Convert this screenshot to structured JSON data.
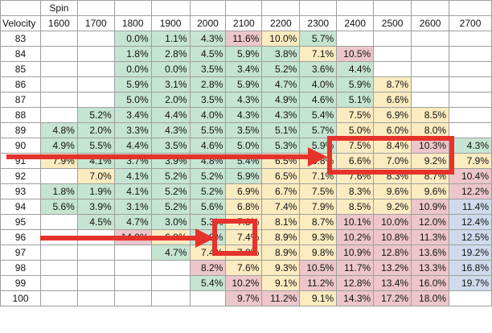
{
  "table": {
    "spin_label": "Spin",
    "velocity_label": "Velocity",
    "spin_values": [
      "1600",
      "1700",
      "1800",
      "1900",
      "2000",
      "2100",
      "2200",
      "2300",
      "2400",
      "2500",
      "2600",
      "2700"
    ],
    "colors": {
      "green": "#c6e4d2",
      "yellow": "#fbebc0",
      "pink": "#ecc6cb",
      "blue": "#cfdbec",
      "arrow": "#e5322b"
    },
    "rows": [
      {
        "velocity": "83",
        "cells": [
          null,
          null,
          [
            "0.0%",
            "g"
          ],
          [
            "1.1%",
            "g"
          ],
          [
            "4.3%",
            "g"
          ],
          [
            "11.6%",
            "p"
          ],
          [
            "10.0%",
            "y"
          ],
          [
            "5.7%",
            "g"
          ],
          null,
          null,
          null,
          null
        ]
      },
      {
        "velocity": "84",
        "cells": [
          null,
          null,
          [
            "1.8%",
            "g"
          ],
          [
            "2.8%",
            "g"
          ],
          [
            "4.5%",
            "g"
          ],
          [
            "5.9%",
            "g"
          ],
          [
            "3.8%",
            "g"
          ],
          [
            "7.1%",
            "y"
          ],
          [
            "10.5%",
            "p"
          ],
          null,
          null,
          null
        ]
      },
      {
        "velocity": "85",
        "cells": [
          null,
          null,
          [
            "0.0%",
            "g"
          ],
          [
            "0.0%",
            "g"
          ],
          [
            "3.5%",
            "g"
          ],
          [
            "3.4%",
            "g"
          ],
          [
            "5.2%",
            "g"
          ],
          [
            "3.6%",
            "g"
          ],
          [
            "4.4%",
            "g"
          ],
          null,
          null,
          null
        ]
      },
      {
        "velocity": "86",
        "cells": [
          null,
          null,
          [
            "5.9%",
            "g"
          ],
          [
            "3.1%",
            "g"
          ],
          [
            "2.8%",
            "g"
          ],
          [
            "5.9%",
            "g"
          ],
          [
            "4.7%",
            "g"
          ],
          [
            "4.0%",
            "g"
          ],
          [
            "5.9%",
            "g"
          ],
          [
            "8.7%",
            "y"
          ],
          null,
          null
        ]
      },
      {
        "velocity": "87",
        "cells": [
          null,
          null,
          [
            "5.0%",
            "g"
          ],
          [
            "2.0%",
            "g"
          ],
          [
            "3.5%",
            "g"
          ],
          [
            "4.3%",
            "g"
          ],
          [
            "4.9%",
            "g"
          ],
          [
            "4.6%",
            "g"
          ],
          [
            "5.1%",
            "g"
          ],
          [
            "6.6%",
            "y"
          ],
          null,
          null
        ]
      },
      {
        "velocity": "88",
        "cells": [
          null,
          [
            "5.2%",
            "g"
          ],
          [
            "3.4%",
            "g"
          ],
          [
            "4.4%",
            "g"
          ],
          [
            "4.0%",
            "g"
          ],
          [
            "4.3%",
            "g"
          ],
          [
            "4.3%",
            "g"
          ],
          [
            "5.4%",
            "g"
          ],
          [
            "7.5%",
            "y"
          ],
          [
            "6.9%",
            "y"
          ],
          [
            "8.5%",
            "y"
          ],
          null
        ]
      },
      {
        "velocity": "89",
        "cells": [
          [
            "4.8%",
            "g"
          ],
          [
            "2.0%",
            "g"
          ],
          [
            "3.3%",
            "g"
          ],
          [
            "4.3%",
            "g"
          ],
          [
            "5.5%",
            "g"
          ],
          [
            "3.5%",
            "g"
          ],
          [
            "5.1%",
            "g"
          ],
          [
            "5.7%",
            "g"
          ],
          [
            "5.0%",
            "y"
          ],
          [
            "6.0%",
            "y"
          ],
          [
            "8.0%",
            "y"
          ],
          null
        ]
      },
      {
        "velocity": "90",
        "cells": [
          [
            "4.9%",
            "g"
          ],
          [
            "5.5%",
            "g"
          ],
          [
            "4.4%",
            "g"
          ],
          [
            "3.5%",
            "g"
          ],
          [
            "4.6%",
            "g"
          ],
          [
            "5.0%",
            "g"
          ],
          [
            "5.3%",
            "g"
          ],
          [
            "5.9%",
            "g"
          ],
          [
            "7.5%",
            "y"
          ],
          [
            "8.4%",
            "y"
          ],
          [
            "10.3%",
            "p"
          ],
          [
            "4.3%",
            "g"
          ]
        ]
      },
      {
        "velocity": "91",
        "cells": [
          [
            "7.9%",
            "y"
          ],
          [
            "4.1%",
            "g"
          ],
          [
            "3.7%",
            "g"
          ],
          [
            "3.9%",
            "g"
          ],
          [
            "4.8%",
            "g"
          ],
          [
            "5.4%",
            "g"
          ],
          [
            "6.5%",
            "y"
          ],
          [
            "6.8%",
            "y"
          ],
          [
            "6.6%",
            "y"
          ],
          [
            "7.0%",
            "y"
          ],
          [
            "9.2%",
            "y"
          ],
          [
            "7.9%",
            "y"
          ]
        ]
      },
      {
        "velocity": "92",
        "cells": [
          null,
          [
            "7.0%",
            "y"
          ],
          [
            "4.1%",
            "g"
          ],
          [
            "5.2%",
            "g"
          ],
          [
            "5.2%",
            "g"
          ],
          [
            "5.9%",
            "g"
          ],
          [
            "6.5%",
            "y"
          ],
          [
            "7.1%",
            "y"
          ],
          [
            "7.6%",
            "y"
          ],
          [
            "8.3%",
            "y"
          ],
          [
            "8.7%",
            "y"
          ],
          [
            "10.4%",
            "p"
          ]
        ]
      },
      {
        "velocity": "93",
        "cells": [
          [
            "1.8%",
            "g"
          ],
          [
            "1.9%",
            "g"
          ],
          [
            "4.1%",
            "g"
          ],
          [
            "5.2%",
            "g"
          ],
          [
            "5.2%",
            "g"
          ],
          [
            "6.9%",
            "y"
          ],
          [
            "6.7%",
            "y"
          ],
          [
            "7.5%",
            "y"
          ],
          [
            "8.3%",
            "y"
          ],
          [
            "9.6%",
            "y"
          ],
          [
            "9.6%",
            "y"
          ],
          [
            "12.2%",
            "p"
          ]
        ]
      },
      {
        "velocity": "94",
        "cells": [
          [
            "5.6%",
            "g"
          ],
          [
            "3.9%",
            "g"
          ],
          [
            "3.1%",
            "g"
          ],
          [
            "5.2%",
            "g"
          ],
          [
            "5.6%",
            "g"
          ],
          [
            "6.8%",
            "y"
          ],
          [
            "7.4%",
            "y"
          ],
          [
            "7.9%",
            "y"
          ],
          [
            "8.5%",
            "y"
          ],
          [
            "9.2%",
            "y"
          ],
          [
            "10.9%",
            "p"
          ],
          [
            "11.4%",
            "b"
          ]
        ]
      },
      {
        "velocity": "95",
        "cells": [
          null,
          [
            "4.5%",
            "g"
          ],
          [
            "4.7%",
            "g"
          ],
          [
            "3.0%",
            "g"
          ],
          [
            "5.3%",
            "g"
          ],
          [
            "7.3%",
            "y"
          ],
          [
            "8.1%",
            "y"
          ],
          [
            "8.7%",
            "y"
          ],
          [
            "10.1%",
            "p"
          ],
          [
            "10.0%",
            "p"
          ],
          [
            "12.0%",
            "p"
          ],
          [
            "12.4%",
            "b"
          ]
        ]
      },
      {
        "velocity": "96",
        "cells": [
          null,
          null,
          [
            "14.0%",
            "p"
          ],
          [
            "6.8%",
            "y"
          ],
          [
            "5.9%",
            "g"
          ],
          [
            "7.4%",
            "y"
          ],
          [
            "8.9%",
            "y"
          ],
          [
            "9.3%",
            "y"
          ],
          [
            "10.2%",
            "p"
          ],
          [
            "10.8%",
            "p"
          ],
          [
            "11.3%",
            "p"
          ],
          [
            "12.5%",
            "b"
          ]
        ]
      },
      {
        "velocity": "97",
        "cells": [
          null,
          null,
          null,
          [
            "4.7%",
            "g"
          ],
          [
            "7.4%",
            "y"
          ],
          [
            "7.8%",
            "y"
          ],
          [
            "8.9%",
            "y"
          ],
          [
            "9.8%",
            "y"
          ],
          [
            "10.9%",
            "p"
          ],
          [
            "12.8%",
            "p"
          ],
          [
            "13.6%",
            "p"
          ],
          [
            "19.2%",
            "b"
          ]
        ]
      },
      {
        "velocity": "98",
        "cells": [
          null,
          null,
          null,
          null,
          [
            "8.2%",
            "p"
          ],
          [
            "7.6%",
            "y"
          ],
          [
            "9.3%",
            "y"
          ],
          [
            "10.5%",
            "p"
          ],
          [
            "11.7%",
            "p"
          ],
          [
            "13.2%",
            "p"
          ],
          [
            "13.3%",
            "p"
          ],
          [
            "16.8%",
            "b"
          ]
        ]
      },
      {
        "velocity": "99",
        "cells": [
          null,
          null,
          null,
          null,
          [
            "5.4%",
            "g"
          ],
          [
            "10.2%",
            "p"
          ],
          [
            "9.1%",
            "y"
          ],
          [
            "11.2%",
            "p"
          ],
          [
            "12.8%",
            "p"
          ],
          [
            "13.4%",
            "p"
          ],
          [
            "16.0%",
            "p"
          ],
          [
            "19.7%",
            "b"
          ]
        ]
      },
      {
        "velocity": "100",
        "cells": [
          null,
          null,
          null,
          null,
          null,
          [
            "9.7%",
            "p"
          ],
          [
            "11.2%",
            "p"
          ],
          [
            "9.1%",
            "y"
          ],
          [
            "14.3%",
            "p"
          ],
          [
            "17.2%",
            "p"
          ],
          [
            "18.0%",
            "p"
          ],
          null
        ]
      }
    ]
  }
}
